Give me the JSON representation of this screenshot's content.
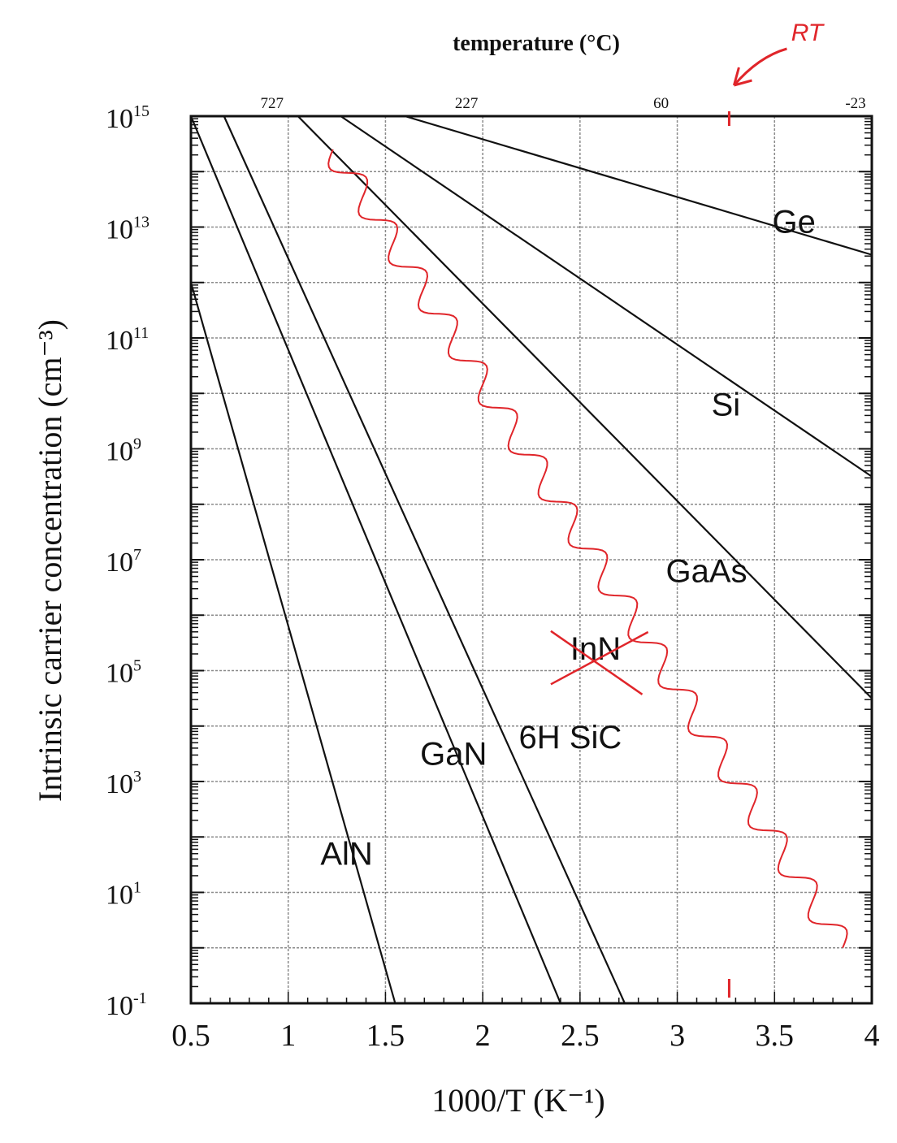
{
  "chart_data": {
    "type": "line",
    "title": "",
    "xlabel": "1000/T (K⁻¹)",
    "ylabel": "Intrinsic carrier concentration (cm⁻³)",
    "top_axis_label": "temperature (°C)",
    "xlim": [
      0.5,
      4
    ],
    "ylim_log10": [
      -1,
      15
    ],
    "yscale": "log",
    "grid": true,
    "x_ticks": [
      "0.5",
      "1",
      "1.5",
      "2",
      "2.5",
      "3",
      "3.5",
      "4"
    ],
    "y_ticks": [
      {
        "base": "10",
        "exp": "15"
      },
      {
        "base": "10",
        "exp": "13"
      },
      {
        "base": "10",
        "exp": "11"
      },
      {
        "base": "10",
        "exp": "9"
      },
      {
        "base": "10",
        "exp": "7"
      },
      {
        "base": "10",
        "exp": "5"
      },
      {
        "base": "10",
        "exp": "3"
      },
      {
        "base": "10",
        "exp": "1"
      },
      {
        "base": "10",
        "exp": "-1"
      }
    ],
    "top_ticks": [
      {
        "label": "727",
        "x": 1.0
      },
      {
        "label": "227",
        "x": 2.0
      },
      {
        "label": "60",
        "x": 3.0
      },
      {
        "label": "-23",
        "x": 4.0
      }
    ],
    "series": [
      {
        "name": "Ge",
        "x": [
          1.6,
          4.0
        ],
        "log10_y": [
          15.0,
          12.5
        ]
      },
      {
        "name": "Si",
        "x": [
          1.27,
          4.0
        ],
        "log10_y": [
          15.0,
          8.5
        ]
      },
      {
        "name": "GaAs",
        "x": [
          1.05,
          4.0
        ],
        "log10_y": [
          15.0,
          4.5
        ]
      },
      {
        "name": "6H SiC",
        "x": [
          0.67,
          2.73
        ],
        "log10_y": [
          15.0,
          -1.0
        ]
      },
      {
        "name": "GaN",
        "x": [
          0.5,
          2.4
        ],
        "log10_y": [
          15.0,
          -1.0
        ]
      },
      {
        "name": "AlN",
        "x": [
          0.5,
          1.55
        ],
        "log10_y": [
          12.0,
          -1.0
        ]
      },
      {
        "name": "InN",
        "x": [
          1.23,
          3.85
        ],
        "log10_y": [
          14.4,
          0.0
        ],
        "style": "red wavy, crossed out"
      }
    ],
    "curve_labels": [
      "Ge",
      "Si",
      "GaAs",
      "InN",
      "6H SiC",
      "GaN",
      "AlN"
    ],
    "annotations": [
      {
        "text": "RT",
        "x": 3.25,
        "color": "#e0252a"
      }
    ],
    "colors": {
      "curves": "#111111",
      "grid": "#8a8a8a",
      "annotation": "#e0252a"
    }
  }
}
